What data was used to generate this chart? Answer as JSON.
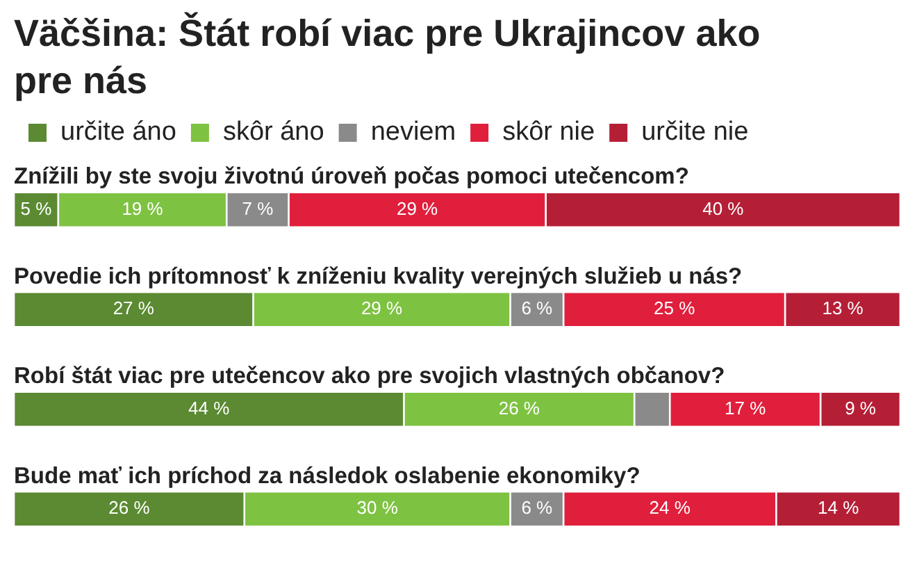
{
  "chart_data": {
    "type": "bar",
    "orientation": "horizontal",
    "stacked": true,
    "title": "Väčšina: Štát robí viac pre Ukrajincov ako pre nás",
    "categories": [
      "Znížili by ste svoju životnú úroveň počas pomoci utečencom?",
      "Povedie ich prítomnosť k zníženiu kvality verejných služieb u nás?",
      "Robí štát viac pre utečencov ako pre svojich vlastných občanov?",
      "Bude mať ich príchod za následok oslabenie ekonomiky?"
    ],
    "xlim": [
      0,
      100
    ],
    "legend": "top left",
    "series": [
      {
        "name": "určite áno",
        "color": "#5b8a32",
        "values": [
          5,
          27,
          44,
          26
        ],
        "value_labels": [
          "5 %",
          "27 %",
          "44 %",
          "26 %"
        ]
      },
      {
        "name": "skôr áno",
        "color": "#7ec242",
        "values": [
          19,
          29,
          26,
          30
        ],
        "value_labels": [
          "19 %",
          "29 %",
          "26 %",
          "30 %"
        ]
      },
      {
        "name": "neviem",
        "color": "#8a8a8a",
        "values": [
          7,
          6,
          4,
          6
        ],
        "value_labels": [
          "7 %",
          "6 %",
          null,
          "6 %"
        ]
      },
      {
        "name": "skôr nie",
        "color": "#e01f3d",
        "values": [
          29,
          25,
          17,
          24
        ],
        "value_labels": [
          "29 %",
          "25 %",
          "17 %",
          "24 %"
        ]
      },
      {
        "name": "určite nie",
        "color": "#b51f36",
        "values": [
          40,
          13,
          9,
          14
        ],
        "value_labels": [
          "40 %",
          "13 %",
          "9 %",
          "14 %"
        ]
      }
    ]
  }
}
